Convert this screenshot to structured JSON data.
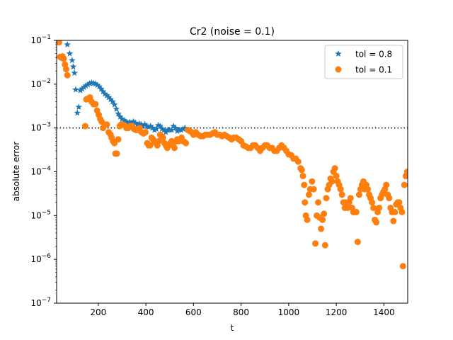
{
  "chart_data": {
    "type": "scatter",
    "title": "Cr2 (noise = 0.1)",
    "xlabel": "t",
    "ylabel": "absolute error",
    "xlim": [
      25,
      1500
    ],
    "ylim_log10": [
      -7,
      -1
    ],
    "y_scale": "log",
    "x_ticks": [
      200,
      400,
      600,
      800,
      1000,
      1200,
      1400
    ],
    "x_tick_labels": [
      "200",
      "400",
      "600",
      "800",
      "1000",
      "1200",
      "1400"
    ],
    "y_ticks_log10": [
      -7,
      -6,
      -5,
      -4,
      -3,
      -2,
      -1
    ],
    "y_tick_labels": [
      {
        "base": "10",
        "exp": "−7"
      },
      {
        "base": "10",
        "exp": "−6"
      },
      {
        "base": "10",
        "exp": "−5"
      },
      {
        "base": "10",
        "exp": "−4"
      },
      {
        "base": "10",
        "exp": "−3"
      },
      {
        "base": "10",
        "exp": "−2"
      },
      {
        "base": "10",
        "exp": "−1"
      }
    ],
    "reference_line": {
      "y": 0.001,
      "style": "dotted",
      "color": "#000000"
    },
    "legend": {
      "position": "top-right"
    },
    "series": [
      {
        "name": "tol = 0.8",
        "marker": "star",
        "color": "#1f77b4",
        "points": [
          [
            30,
            0.1
          ],
          [
            70,
            0.08
          ],
          [
            80,
            0.05
          ],
          [
            90,
            0.035
          ],
          [
            95,
            0.025
          ],
          [
            100,
            0.018
          ],
          [
            105,
            0.0075
          ],
          [
            112,
            0.0022
          ],
          [
            118,
            0.003
          ],
          [
            125,
            0.0072
          ],
          [
            132,
            0.0078
          ],
          [
            140,
            0.0085
          ],
          [
            148,
            0.0092
          ],
          [
            156,
            0.0098
          ],
          [
            164,
            0.0104
          ],
          [
            172,
            0.0108
          ],
          [
            180,
            0.0105
          ],
          [
            188,
            0.0102
          ],
          [
            196,
            0.0095
          ],
          [
            204,
            0.0088
          ],
          [
            212,
            0.0078
          ],
          [
            220,
            0.0068
          ],
          [
            228,
            0.006
          ],
          [
            236,
            0.0055
          ],
          [
            244,
            0.005
          ],
          [
            252,
            0.0045
          ],
          [
            260,
            0.004
          ],
          [
            268,
            0.0034
          ],
          [
            276,
            0.0027
          ],
          [
            284,
            0.0021
          ],
          [
            292,
            0.0018
          ],
          [
            300,
            0.0016
          ],
          [
            308,
            0.0015
          ],
          [
            316,
            0.0014
          ],
          [
            324,
            0.0013
          ],
          [
            332,
            0.00135
          ],
          [
            340,
            0.0013
          ],
          [
            348,
            0.0014
          ],
          [
            356,
            0.0013
          ],
          [
            364,
            0.0012
          ],
          [
            372,
            0.00125
          ],
          [
            380,
            0.0012
          ],
          [
            388,
            0.0011
          ],
          [
            396,
            0.0012
          ],
          [
            404,
            0.0011
          ],
          [
            412,
            0.00105
          ],
          [
            420,
            0.0011
          ],
          [
            428,
            0.001
          ],
          [
            436,
            0.0009
          ],
          [
            444,
            0.00095
          ],
          [
            452,
            0.00115
          ],
          [
            460,
            0.0011
          ],
          [
            468,
            0.00095
          ],
          [
            476,
            0.0009
          ],
          [
            484,
            0.0008
          ],
          [
            492,
            0.0009
          ],
          [
            500,
            0.0009
          ],
          [
            508,
            0.0009
          ],
          [
            516,
            0.0011
          ],
          [
            524,
            0.001
          ],
          [
            532,
            0.00085
          ],
          [
            540,
            0.0009
          ],
          [
            548,
            0.0009
          ],
          [
            556,
            0.00095
          ],
          [
            564,
            0.001
          ]
        ]
      },
      {
        "name": "tol = 0.1",
        "marker": "circle",
        "color": "#ff7f0e",
        "points": [
          [
            30,
            0.1
          ],
          [
            35,
            0.09
          ],
          [
            40,
            0.042
          ],
          [
            45,
            0.04
          ],
          [
            50,
            0.043
          ],
          [
            55,
            0.038
          ],
          [
            60,
            0.028
          ],
          [
            65,
            0.022
          ],
          [
            70,
            0.016
          ],
          [
            145,
            0.0011
          ],
          [
            150,
            0.0045
          ],
          [
            158,
            0.0047
          ],
          [
            165,
            0.005
          ],
          [
            172,
            0.004
          ],
          [
            180,
            0.0035
          ],
          [
            188,
            0.0035
          ],
          [
            195,
            0.0025
          ],
          [
            202,
            0.002
          ],
          [
            208,
            0.0016
          ],
          [
            214,
            0.0014
          ],
          [
            220,
            0.001
          ],
          [
            228,
            0.0012
          ],
          [
            236,
            0.0012
          ],
          [
            244,
            0.0008
          ],
          [
            252,
            0.0007
          ],
          [
            256,
            0.0006
          ],
          [
            262,
            0.0005
          ],
          [
            268,
            0.00045
          ],
          [
            272,
            0.00026
          ],
          [
            278,
            0.00026
          ],
          [
            284,
            0.00055
          ],
          [
            290,
            0.0011
          ],
          [
            296,
            0.0012
          ],
          [
            302,
            0.0012
          ],
          [
            310,
            0.00115
          ],
          [
            318,
            0.001
          ],
          [
            326,
            0.001
          ],
          [
            334,
            0.0011
          ],
          [
            342,
            0.0011
          ],
          [
            350,
            0.00095
          ],
          [
            358,
            0.0009
          ],
          [
            366,
            0.0009
          ],
          [
            374,
            0.001
          ],
          [
            382,
            0.0008
          ],
          [
            390,
            0.00075
          ],
          [
            398,
            0.0008
          ],
          [
            406,
            0.00045
          ],
          [
            412,
            0.0004
          ],
          [
            418,
            0.0004
          ],
          [
            424,
            0.0006
          ],
          [
            430,
            0.00055
          ],
          [
            436,
            0.0005
          ],
          [
            442,
            0.00045
          ],
          [
            448,
            0.0004
          ],
          [
            454,
            0.0005
          ],
          [
            460,
            0.0007
          ],
          [
            466,
            0.00065
          ],
          [
            472,
            0.0006
          ],
          [
            478,
            0.00045
          ],
          [
            484,
            0.0004
          ],
          [
            490,
            0.00035
          ],
          [
            496,
            0.0004
          ],
          [
            502,
            0.00045
          ],
          [
            508,
            0.0005
          ],
          [
            514,
            0.0004
          ],
          [
            520,
            0.00035
          ],
          [
            526,
            0.0005
          ],
          [
            532,
            0.00055
          ],
          [
            538,
            0.0005
          ],
          [
            544,
            0.00055
          ],
          [
            550,
            0.0006
          ],
          [
            556,
            0.0005
          ],
          [
            562,
            0.00048
          ],
          [
            568,
            0.00045
          ],
          [
            576,
            0.0009
          ],
          [
            584,
            0.00085
          ],
          [
            592,
            0.0008
          ],
          [
            600,
            0.0007
          ],
          [
            610,
            0.0008
          ],
          [
            620,
            0.0007
          ],
          [
            630,
            0.00065
          ],
          [
            640,
            0.00065
          ],
          [
            650,
            0.0007
          ],
          [
            660,
            0.0007
          ],
          [
            670,
            0.0007
          ],
          [
            680,
            0.00075
          ],
          [
            690,
            0.0008
          ],
          [
            700,
            0.0007
          ],
          [
            710,
            0.0007
          ],
          [
            720,
            0.00065
          ],
          [
            730,
            0.0007
          ],
          [
            740,
            0.00065
          ],
          [
            750,
            0.0006
          ],
          [
            760,
            0.00055
          ],
          [
            770,
            0.0006
          ],
          [
            780,
            0.0006
          ],
          [
            790,
            0.00055
          ],
          [
            800,
            0.0005
          ],
          [
            810,
            0.0004
          ],
          [
            820,
            0.00038
          ],
          [
            830,
            0.00035
          ],
          [
            840,
            0.00035
          ],
          [
            850,
            0.0004
          ],
          [
            860,
            0.0004
          ],
          [
            870,
            0.00035
          ],
          [
            880,
            0.0003
          ],
          [
            890,
            0.00035
          ],
          [
            900,
            0.0004
          ],
          [
            910,
            0.0004
          ],
          [
            920,
            0.00035
          ],
          [
            930,
            0.00035
          ],
          [
            940,
            0.0003
          ],
          [
            950,
            0.0003
          ],
          [
            960,
            0.00035
          ],
          [
            970,
            0.0004
          ],
          [
            980,
            0.00035
          ],
          [
            990,
            0.0003
          ],
          [
            1000,
            0.00025
          ],
          [
            1010,
            0.00024
          ],
          [
            1020,
            0.0002
          ],
          [
            1030,
            0.0002
          ],
          [
            1040,
            0.00017
          ],
          [
            1050,
            0.00012
          ],
          [
            1055,
            0.00011
          ],
          [
            1060,
            8e-05
          ],
          [
            1065,
            5e-05
          ],
          [
            1068,
            2e-05
          ],
          [
            1072,
            1e-05
          ],
          [
            1078,
            8e-06
          ],
          [
            1085,
            3e-05
          ],
          [
            1090,
            4e-05
          ],
          [
            1098,
            6e-05
          ],
          [
            1105,
            4e-05
          ],
          [
            1112,
            2.3e-06
          ],
          [
            1118,
            1e-05
          ],
          [
            1124,
            2e-05
          ],
          [
            1130,
            9e-06
          ],
          [
            1136,
            5e-06
          ],
          [
            1142,
            8e-06
          ],
          [
            1148,
            1.1e-05
          ],
          [
            1153,
            2.1e-06
          ],
          [
            1158,
            2.5e-05
          ],
          [
            1164,
            4e-05
          ],
          [
            1170,
            5e-05
          ],
          [
            1176,
            7e-05
          ],
          [
            1182,
            6e-05
          ],
          [
            1188,
            0.0001
          ],
          [
            1194,
            0.00012
          ],
          [
            1200,
            8e-05
          ],
          [
            1206,
            6e-05
          ],
          [
            1212,
            5e-05
          ],
          [
            1218,
            4e-05
          ],
          [
            1224,
            3e-05
          ],
          [
            1230,
            2e-05
          ],
          [
            1236,
            1.5e-05
          ],
          [
            1242,
            2e-05
          ],
          [
            1248,
            1.5e-05
          ],
          [
            1254,
            2e-05
          ],
          [
            1260,
            2.5e-05
          ],
          [
            1266,
            1.5e-05
          ],
          [
            1272,
            1.2e-05
          ],
          [
            1278,
            1.2e-05
          ],
          [
            1284,
            1.2e-05
          ],
          [
            1290,
            2.5e-06
          ],
          [
            1296,
            3e-05
          ],
          [
            1302,
            4e-05
          ],
          [
            1308,
            5e-05
          ],
          [
            1314,
            6e-05
          ],
          [
            1320,
            4e-05
          ],
          [
            1326,
            5e-05
          ],
          [
            1332,
            4e-05
          ],
          [
            1338,
            3e-05
          ],
          [
            1344,
            2.5e-05
          ],
          [
            1350,
            2e-05
          ],
          [
            1356,
            1.5e-05
          ],
          [
            1362,
            8e-06
          ],
          [
            1368,
            7e-06
          ],
          [
            1374,
            1.2e-05
          ],
          [
            1380,
            1.5e-05
          ],
          [
            1386,
            2.5e-05
          ],
          [
            1392,
            3e-05
          ],
          [
            1398,
            3.5e-05
          ],
          [
            1404,
            4e-05
          ],
          [
            1410,
            5e-05
          ],
          [
            1416,
            3e-05
          ],
          [
            1422,
            2.5e-05
          ],
          [
            1428,
            1.5e-05
          ],
          [
            1434,
            1.2e-05
          ],
          [
            1440,
            7.5e-06
          ],
          [
            1446,
            1.2e-05
          ],
          [
            1452,
            1.8e-05
          ],
          [
            1458,
            2e-05
          ],
          [
            1464,
            2e-05
          ],
          [
            1470,
            1.5e-05
          ],
          [
            1476,
            1.2e-05
          ],
          [
            1480,
            7e-07
          ],
          [
            1486,
            5e-05
          ],
          [
            1492,
            8e-05
          ],
          [
            1498,
            0.0001
          ]
        ]
      }
    ]
  }
}
